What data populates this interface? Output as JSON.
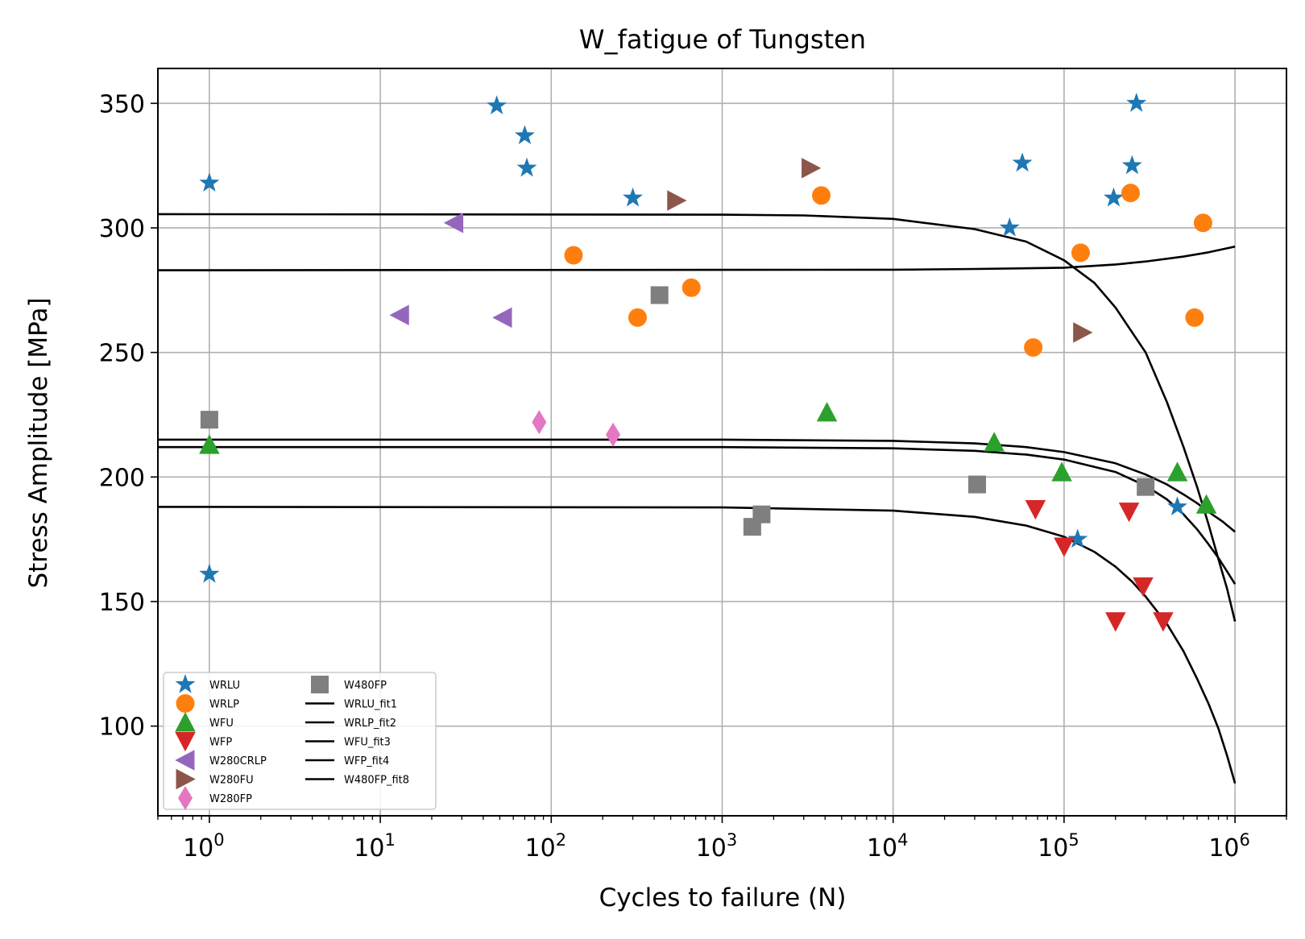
{
  "chart_data": {
    "type": "scatter",
    "title": "W_fatigue of Tungsten",
    "xlabel": "Cycles to failure (N)",
    "ylabel": "Stress Amplitude [MPa]",
    "xscale": "log",
    "xlim": [
      0.5,
      2000000
    ],
    "ylim": [
      64,
      364
    ],
    "xticks": [
      {
        "value": 1,
        "base": "10",
        "exp": "0"
      },
      {
        "value": 10,
        "base": "10",
        "exp": "1"
      },
      {
        "value": 100,
        "base": "10",
        "exp": "2"
      },
      {
        "value": 1000,
        "base": "10",
        "exp": "3"
      },
      {
        "value": 10000,
        "base": "10",
        "exp": "4"
      },
      {
        "value": 100000,
        "base": "10",
        "exp": "5"
      },
      {
        "value": 1000000,
        "base": "10",
        "exp": "6"
      }
    ],
    "yticks": [
      100,
      150,
      200,
      250,
      300,
      350
    ],
    "grid": true,
    "legend_position": "lower-left",
    "legend_columns": 2,
    "series": [
      {
        "name": "WRLU",
        "kind": "scatter",
        "marker": "star",
        "color": "#1f77b4",
        "points": [
          [
            1,
            318
          ],
          [
            1,
            161
          ],
          [
            48,
            349
          ],
          [
            70,
            337
          ],
          [
            72,
            324
          ],
          [
            300,
            312
          ],
          [
            48000,
            300
          ],
          [
            57000,
            326
          ],
          [
            120000,
            175
          ],
          [
            195000,
            312
          ],
          [
            250000,
            325
          ],
          [
            265000,
            350
          ],
          [
            460000,
            188
          ]
        ]
      },
      {
        "name": "WRLP",
        "kind": "scatter",
        "marker": "circle",
        "color": "#ff7f0e",
        "points": [
          [
            135,
            289
          ],
          [
            320,
            264
          ],
          [
            660,
            276
          ],
          [
            3800,
            313
          ],
          [
            66000,
            252
          ],
          [
            125000,
            290
          ],
          [
            245000,
            314
          ],
          [
            580000,
            264
          ],
          [
            650000,
            302
          ]
        ]
      },
      {
        "name": "WFU",
        "kind": "scatter",
        "marker": "triangle-up",
        "color": "#2ca02c",
        "points": [
          [
            1,
            213
          ],
          [
            4100,
            226
          ],
          [
            39000,
            214
          ],
          [
            97000,
            202
          ],
          [
            460000,
            202
          ],
          [
            680000,
            189
          ]
        ]
      },
      {
        "name": "WFP",
        "kind": "scatter",
        "marker": "triangle-down",
        "color": "#d62728",
        "points": [
          [
            68000,
            187
          ],
          [
            100000,
            172
          ],
          [
            200000,
            142
          ],
          [
            240000,
            186
          ],
          [
            290000,
            156
          ],
          [
            380000,
            142
          ]
        ]
      },
      {
        "name": "W280CRLP",
        "kind": "scatter",
        "marker": "triangle-left",
        "color": "#9467bd",
        "points": [
          [
            13,
            265
          ],
          [
            27,
            302
          ],
          [
            52,
            264
          ]
        ]
      },
      {
        "name": "W280FU",
        "kind": "scatter",
        "marker": "triangle-right",
        "color": "#8c564b",
        "points": [
          [
            540,
            311
          ],
          [
            3300,
            324
          ],
          [
            128000,
            258
          ]
        ]
      },
      {
        "name": "W280FP",
        "kind": "scatter",
        "marker": "diamond",
        "color": "#e377c2",
        "points": [
          [
            85,
            222
          ],
          [
            230,
            217
          ]
        ]
      },
      {
        "name": "W480FP",
        "kind": "scatter",
        "marker": "square",
        "color": "#7f7f7f",
        "points": [
          [
            1,
            223
          ],
          [
            430,
            273
          ],
          [
            1500,
            180
          ],
          [
            1700,
            185
          ],
          [
            31000,
            197
          ],
          [
            300000,
            196
          ]
        ]
      },
      {
        "name": "WRLU_fit1",
        "kind": "line",
        "color": "#000000",
        "points": [
          [
            0.5,
            305.5
          ],
          [
            1000,
            305.3
          ],
          [
            3000,
            305
          ],
          [
            10000,
            303.6
          ],
          [
            30000,
            299.5
          ],
          [
            60000,
            294.5
          ],
          [
            100000,
            287
          ],
          [
            150000,
            278
          ],
          [
            200000,
            268
          ],
          [
            300000,
            250
          ],
          [
            400000,
            230
          ],
          [
            500000,
            212
          ],
          [
            600000,
            196
          ],
          [
            700000,
            181
          ],
          [
            800000,
            167
          ],
          [
            900000,
            155
          ],
          [
            1000000,
            142
          ]
        ]
      },
      {
        "name": "WRLP_fit2",
        "kind": "line",
        "color": "#000000",
        "points": [
          [
            0.5,
            283
          ],
          [
            10000,
            283.2
          ],
          [
            30000,
            283.5
          ],
          [
            100000,
            284
          ],
          [
            200000,
            285.3
          ],
          [
            300000,
            286.5
          ],
          [
            500000,
            288.5
          ],
          [
            700000,
            290.2
          ],
          [
            1000000,
            292.5
          ]
        ]
      },
      {
        "name": "WFU_fit3",
        "kind": "line",
        "color": "#000000",
        "points": [
          [
            0.5,
            215
          ],
          [
            1000,
            215
          ],
          [
            10000,
            214.5
          ],
          [
            30000,
            213.5
          ],
          [
            60000,
            212
          ],
          [
            100000,
            210
          ],
          [
            200000,
            205.5
          ],
          [
            300000,
            201
          ],
          [
            400000,
            197
          ],
          [
            500000,
            193
          ],
          [
            600000,
            189.5
          ],
          [
            700000,
            186
          ],
          [
            850000,
            182
          ],
          [
            1000000,
            178
          ]
        ]
      },
      {
        "name": "WFP_fit4",
        "kind": "line",
        "color": "#000000",
        "points": [
          [
            0.5,
            188
          ],
          [
            1000,
            187.8
          ],
          [
            10000,
            186.5
          ],
          [
            30000,
            184
          ],
          [
            60000,
            180.5
          ],
          [
            100000,
            176
          ],
          [
            150000,
            170
          ],
          [
            200000,
            164
          ],
          [
            250000,
            158
          ],
          [
            300000,
            152
          ],
          [
            400000,
            141
          ],
          [
            500000,
            130
          ],
          [
            600000,
            119
          ],
          [
            700000,
            109
          ],
          [
            800000,
            99
          ],
          [
            900000,
            88
          ],
          [
            1000000,
            77
          ]
        ]
      },
      {
        "name": "W480FP_fit8",
        "kind": "line",
        "color": "#000000",
        "points": [
          [
            0.5,
            212
          ],
          [
            1000,
            212
          ],
          [
            10000,
            211.5
          ],
          [
            30000,
            210.5
          ],
          [
            60000,
            209
          ],
          [
            100000,
            207
          ],
          [
            200000,
            202
          ],
          [
            300000,
            196.5
          ],
          [
            400000,
            191
          ],
          [
            500000,
            185
          ],
          [
            600000,
            179
          ],
          [
            700000,
            173
          ],
          [
            800000,
            167.5
          ],
          [
            900000,
            162
          ],
          [
            1000000,
            157
          ]
        ]
      }
    ]
  }
}
